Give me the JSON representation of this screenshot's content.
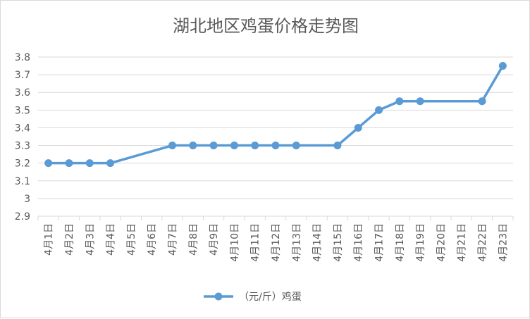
{
  "chart_data": {
    "type": "line",
    "title": "湖北地区鸡蛋价格走势图",
    "xlabel": "",
    "ylabel": "",
    "categories": [
      "4月1日",
      "4月2日",
      "4月3日",
      "4月4日",
      "4月5日",
      "4月6日",
      "4月7日",
      "4月8日",
      "4月9日",
      "4月10日",
      "4月11日",
      "4月12日",
      "4月13日",
      "4月14日",
      "4月15日",
      "4月16日",
      "4月17日",
      "4月18日",
      "4月19日",
      "4月20日",
      "4月21日",
      "4月22日",
      "4月23日"
    ],
    "series": [
      {
        "name": "（元/斤）鸡蛋",
        "color": "#5b9bd5",
        "values": [
          3.2,
          3.2,
          3.2,
          3.2,
          null,
          null,
          3.3,
          3.3,
          3.3,
          3.3,
          3.3,
          3.3,
          3.3,
          null,
          3.3,
          3.4,
          3.5,
          3.55,
          3.55,
          null,
          null,
          3.55,
          3.75
        ]
      }
    ],
    "ylim": [
      2.9,
      3.8
    ],
    "yticks": [
      2.9,
      3,
      3.1,
      3.2,
      3.3,
      3.4,
      3.5,
      3.6,
      3.7,
      3.8
    ],
    "ytick_labels": [
      "2.9",
      "3",
      "3.1",
      "3.2",
      "3.3",
      "3.4",
      "3.5",
      "3.6",
      "3.7",
      "3.8"
    ],
    "gaps": "connect",
    "grid": true,
    "legend_position": "bottom",
    "colors": {
      "series": "#5b9bd5",
      "grid": "#d9d9d9",
      "text": "#595959"
    }
  }
}
